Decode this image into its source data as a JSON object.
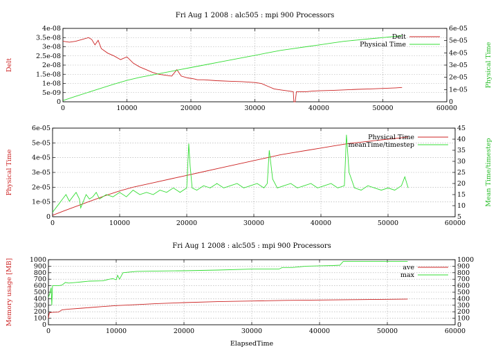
{
  "chart_data": [
    {
      "type": "line",
      "title": "Fri Aug 1 2008 : alc505 : mpi 900 Processors",
      "xlabel": "",
      "ylabel_left": "Delt",
      "ylabel_right": "Physical Time",
      "xlim": [
        0,
        60000
      ],
      "ylim_left": [
        0,
        4e-08
      ],
      "ylim_right": [
        0,
        6e-05
      ],
      "x_ticks": [
        "0",
        "10000",
        "20000",
        "30000",
        "40000",
        "50000",
        "60000"
      ],
      "y_ticks_left": [
        "0",
        "5e-09",
        "1e-08",
        "1.5e-08",
        "2e-08",
        "2.5e-08",
        "3e-08",
        "3.5e-08",
        "4e-08"
      ],
      "y_ticks_right": [
        "0",
        "1e-05",
        "2e-05",
        "3e-05",
        "4e-05",
        "5e-05",
        "6e-05"
      ],
      "grid": true,
      "legend_position": "top-right",
      "series": [
        {
          "name": "Delt",
          "axis": "left",
          "color": "#cc2222",
          "x": [
            0,
            1000,
            2000,
            3000,
            4000,
            4500,
            5000,
            5500,
            6000,
            7000,
            8000,
            9000,
            10000,
            11000,
            12000,
            13000,
            14000,
            15000,
            16000,
            17000,
            17800,
            18500,
            19500,
            20500,
            21000,
            22000,
            24000,
            26000,
            28000,
            30000,
            31000,
            32000,
            33000,
            34000,
            35000,
            36000,
            36100,
            36300,
            36500,
            37000,
            38000,
            39000,
            40000,
            42000,
            44000,
            46000,
            48000,
            50000,
            52000,
            53000
          ],
          "y": [
            3.3e-08,
            3.25e-08,
            3.3e-08,
            3.4e-08,
            3.5e-08,
            3.4e-08,
            3.1e-08,
            3.35e-08,
            2.9e-08,
            2.65e-08,
            2.5e-08,
            2.3e-08,
            2.45e-08,
            2.1e-08,
            1.9e-08,
            1.75e-08,
            1.6e-08,
            1.5e-08,
            1.45e-08,
            1.4e-08,
            1.75e-08,
            1.4e-08,
            1.3e-08,
            1.25e-08,
            1.2e-08,
            1.2e-08,
            1.15e-08,
            1.12e-08,
            1.1e-08,
            1.05e-08,
            1e-08,
            8.5e-09,
            7e-09,
            6.5e-09,
            6e-09,
            5.5e-09,
            0,
            0,
            5.5e-09,
            5.5e-09,
            5.5e-09,
            5.8e-09,
            6e-09,
            6.2e-09,
            6.5e-09,
            6.8e-09,
            7e-09,
            7.3e-09,
            7.6e-09,
            7.8e-09
          ]
        },
        {
          "name": "Physical Time",
          "axis": "right",
          "color": "#33dd33",
          "x": [
            0,
            2000,
            5000,
            8000,
            10000,
            12000,
            15000,
            18000,
            20000,
            22000,
            25000,
            28000,
            30000,
            32000,
            34000,
            36000,
            38000,
            40000,
            42000,
            44000,
            46000,
            48000,
            50000,
            52000,
            53000
          ],
          "y": [
            1e-06,
            4.5e-06,
            9.5e-06,
            1.45e-05,
            1.75e-05,
            2e-05,
            2.3e-05,
            2.6e-05,
            2.8e-05,
            3e-05,
            3.3e-05,
            3.6e-05,
            3.8e-05,
            4e-05,
            4.2e-05,
            4.35e-05,
            4.5e-05,
            4.65e-05,
            4.8e-05,
            4.95e-05,
            5.05e-05,
            5.15e-05,
            5.25e-05,
            5.35e-05,
            5.4e-05
          ]
        }
      ]
    },
    {
      "type": "line",
      "title": "",
      "xlabel": "",
      "ylabel_left": "Physical Time",
      "ylabel_right": "Mean Time/timestep",
      "xlim": [
        0,
        60000
      ],
      "ylim_left": [
        0,
        6e-05
      ],
      "ylim_right": [
        5,
        45
      ],
      "x_ticks": [
        "0",
        "10000",
        "20000",
        "30000",
        "40000",
        "50000",
        "60000"
      ],
      "y_ticks_left": [
        "0",
        "1e-05",
        "2e-05",
        "3e-05",
        "4e-05",
        "5e-05",
        "6e-05"
      ],
      "y_ticks_right": [
        "5",
        "10",
        "15",
        "20",
        "25",
        "30",
        "35",
        "40",
        "45"
      ],
      "grid": true,
      "legend_position": "top-right",
      "series": [
        {
          "name": "Physical Time",
          "axis": "left",
          "color": "#cc2222",
          "x": [
            0,
            2000,
            5000,
            8000,
            10000,
            12000,
            15000,
            18000,
            20000,
            22000,
            25000,
            28000,
            30000,
            32000,
            34000,
            36000,
            38000,
            40000,
            42000,
            44000,
            46000,
            48000,
            50000,
            52000,
            53000
          ],
          "y": [
            1e-06,
            4.5e-06,
            9.5e-06,
            1.45e-05,
            1.75e-05,
            2e-05,
            2.3e-05,
            2.6e-05,
            2.8e-05,
            3e-05,
            3.3e-05,
            3.6e-05,
            3.8e-05,
            4e-05,
            4.2e-05,
            4.35e-05,
            4.5e-05,
            4.65e-05,
            4.8e-05,
            4.95e-05,
            5.05e-05,
            5.15e-05,
            5.25e-05,
            5.35e-05,
            5.4e-05
          ]
        },
        {
          "name": "meanTime/timestep",
          "axis": "right",
          "color": "#33dd33",
          "x": [
            0,
            500,
            1000,
            1500,
            2000,
            2500,
            3000,
            3500,
            4000,
            4200,
            4600,
            5000,
            5500,
            6000,
            6500,
            7000,
            8000,
            9000,
            10000,
            11000,
            12000,
            13000,
            14000,
            15000,
            16000,
            17000,
            18000,
            19000,
            20000,
            20300,
            20500,
            20800,
            21500,
            22500,
            23500,
            24500,
            25500,
            26500,
            27500,
            28500,
            29500,
            30500,
            31500,
            32000,
            32300,
            32800,
            33500,
            34500,
            35500,
            36500,
            37500,
            38500,
            39500,
            40500,
            41500,
            42500,
            43500,
            43800,
            44200,
            45000,
            46000,
            47000,
            48000,
            49000,
            50000,
            51000,
            52000,
            52500,
            53000
          ],
          "y": [
            7,
            9,
            11,
            13,
            15,
            12,
            14,
            16,
            13,
            9,
            12,
            15,
            13,
            14,
            16,
            13,
            15,
            14,
            16,
            14,
            17,
            15,
            16,
            15,
            17,
            16,
            18,
            16,
            18,
            38,
            28,
            18,
            17,
            19,
            18,
            20,
            18,
            19,
            20,
            18,
            19,
            20,
            18,
            20,
            35,
            22,
            18,
            19,
            20,
            18,
            19,
            20,
            18,
            19,
            20,
            18,
            19,
            42,
            25,
            18,
            17,
            19,
            18,
            17,
            18,
            17,
            19,
            23,
            18
          ]
        }
      ]
    },
    {
      "type": "line",
      "title": "Fri Aug 1 2008 : alc505 : mpi 900 Processors",
      "xlabel": "ElapsedTime",
      "ylabel_left": "Memory usage [MB]",
      "ylabel_right": "",
      "xlim": [
        0,
        60000
      ],
      "ylim_left": [
        0,
        1000
      ],
      "ylim_right": [
        0,
        1000
      ],
      "x_ticks": [
        "0",
        "10000",
        "20000",
        "30000",
        "40000",
        "50000",
        "60000"
      ],
      "y_ticks_left": [
        "0",
        "100",
        "200",
        "300",
        "400",
        "500",
        "600",
        "700",
        "800",
        "900",
        "1000"
      ],
      "y_ticks_right": [
        "0",
        "100",
        "200",
        "300",
        "400",
        "500",
        "600",
        "700",
        "800",
        "900",
        "1000"
      ],
      "grid": true,
      "legend_position": "top-right",
      "series": [
        {
          "name": "ave",
          "axis": "left",
          "color": "#cc2222",
          "x": [
            0,
            100,
            200,
            300,
            500,
            1500,
            2000,
            3000,
            5000,
            8000,
            10000,
            13000,
            16000,
            20000,
            25000,
            30000,
            35000,
            40000,
            45000,
            50000,
            53000
          ],
          "y": [
            100,
            170,
            190,
            185,
            190,
            195,
            230,
            240,
            255,
            280,
            295,
            310,
            325,
            340,
            355,
            365,
            375,
            380,
            385,
            390,
            395
          ]
        },
        {
          "name": "max",
          "axis": "left",
          "color": "#33dd33",
          "x": [
            0,
            200,
            400,
            500,
            600,
            1500,
            2000,
            2500,
            3000,
            4000,
            5000,
            6000,
            8000,
            9000,
            9500,
            10000,
            10200,
            10500,
            11000,
            13000,
            16000,
            20000,
            25000,
            30000,
            34000,
            34500,
            36000,
            38000,
            40000,
            42000,
            43000,
            43500,
            45000,
            48000,
            50000,
            53000
          ],
          "y": [
            420,
            480,
            570,
            300,
            600,
            600,
            610,
            650,
            640,
            650,
            660,
            670,
            675,
            700,
            710,
            690,
            760,
            700,
            800,
            820,
            825,
            830,
            840,
            855,
            855,
            880,
            880,
            900,
            905,
            910,
            915,
            975,
            975,
            975,
            975,
            975
          ]
        }
      ]
    }
  ]
}
